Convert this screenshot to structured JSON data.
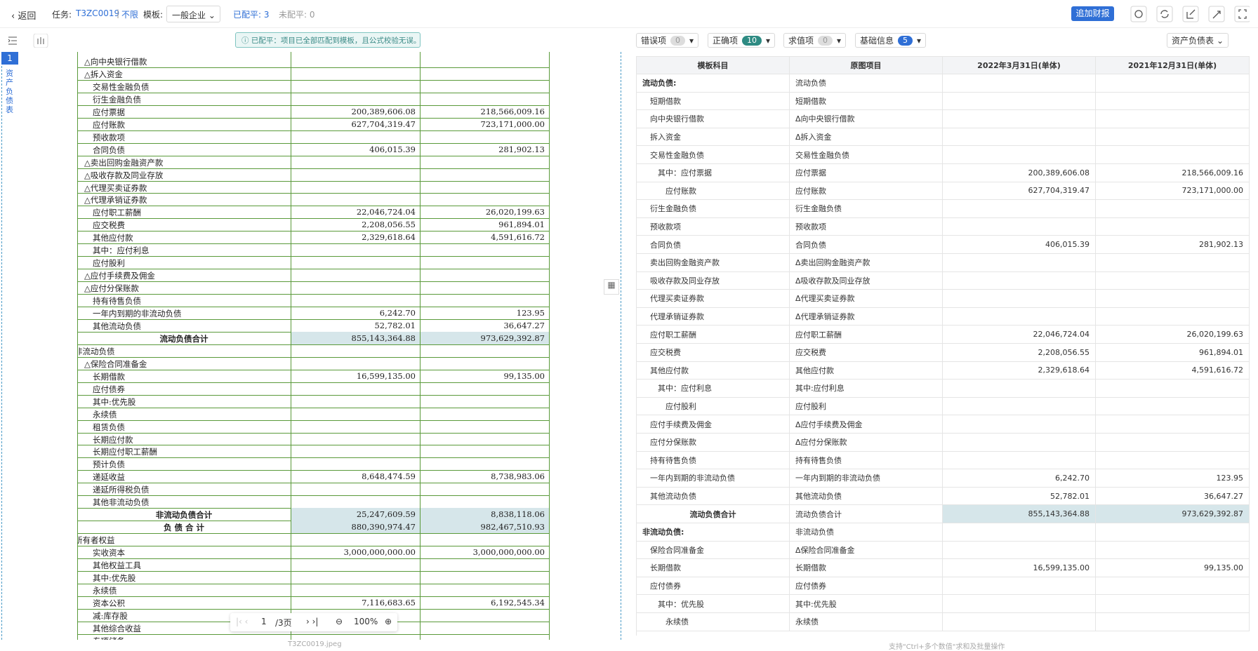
{
  "topbar": {
    "back": "返回",
    "task_label": "任务:",
    "task_id": "T3ZC0019",
    "scope": "不限",
    "template_label": "模板:",
    "template": "一般企业",
    "balanced": "已配平: 3",
    "unbalanced": "未配平: 0",
    "add_button": "追加财报"
  },
  "banner": "已配平：项目已全部匹配到模板，且公式校验无误。",
  "side_tab": {
    "index": "1",
    "label": "资产负债表"
  },
  "document": {
    "file": "T3ZC0019.jpeg",
    "rows": [
      [
        "△向中央银行借款"
      ],
      [
        "△拆入资金"
      ],
      [
        "交易性金融负债"
      ],
      [
        "衍生金融负债"
      ],
      [
        "应付票据",
        "200,389,606.08",
        "218,566,009.16"
      ],
      [
        "应付账款",
        "627,704,319.47",
        "723,171,000.00"
      ],
      [
        "预收款项"
      ],
      [
        "合同负债",
        "406,015.39",
        "281,902.13"
      ],
      [
        "△卖出回购金融资产款"
      ],
      [
        "△吸收存款及同业存放"
      ],
      [
        "△代理买卖证券款"
      ],
      [
        "△代理承销证券款"
      ],
      [
        "应付职工薪酬",
        "22,046,724.04",
        "26,020,199.63"
      ],
      [
        "应交税费",
        "2,208,056.55",
        "961,894.01"
      ],
      [
        "其他应付款",
        "2,329,618.64",
        "4,591,616.72"
      ],
      [
        "其中：应付利息"
      ],
      [
        "应付股利"
      ],
      [
        "△应付手续费及佣金"
      ],
      [
        "△应付分保账款"
      ],
      [
        "持有待售负债"
      ],
      [
        "一年内到期的非流动负债",
        "6,242.70",
        "123.95"
      ],
      [
        "其他流动负债",
        "52,782.01",
        "36,647.27"
      ],
      [
        "流动负债合计",
        "855,143,364.88",
        "973,629,392.87"
      ],
      [
        "非流动负债"
      ],
      [
        "△保险合同准备金"
      ],
      [
        "长期借款",
        "16,599,135.00",
        "99,135.00"
      ],
      [
        "应付债券"
      ],
      [
        "其中:优先股"
      ],
      [
        "永续债"
      ],
      [
        "租赁负债"
      ],
      [
        "长期应付款"
      ],
      [
        "长期应付职工薪酬"
      ],
      [
        "预计负债"
      ],
      [
        "递延收益",
        "8,648,474.59",
        "8,738,983.06"
      ],
      [
        "递延所得税负债"
      ],
      [
        "其他非流动负债"
      ],
      [
        "非流动负债合计",
        "25,247,609.59",
        "8,838,118.06"
      ],
      [
        "负 债 合 计",
        "880,390,974.47",
        "982,467,510.93"
      ],
      [
        "所有者权益"
      ],
      [
        "实收资本",
        "3,000,000,000.00",
        "3,000,000,000.00"
      ],
      [
        "其他权益工具"
      ],
      [
        "其中:优先股"
      ],
      [
        "永续债"
      ],
      [
        "资本公积",
        "7,116,683.65",
        "6,192,545.34"
      ],
      [
        "减:库存股"
      ],
      [
        "其他综合收益"
      ],
      [
        "专项储备"
      ]
    ]
  },
  "pager": {
    "page": "1",
    "total": "/3页",
    "zoom": "100%"
  },
  "filters": [
    {
      "label": "错误项",
      "count": 0
    },
    {
      "label": "正确项",
      "count": 10
    },
    {
      "label": "求值项",
      "count": 0
    },
    {
      "label": "基础信息",
      "count": 5
    }
  ],
  "sheet_select": "资产负债表",
  "table": {
    "headers": [
      "模板科目",
      "原图项目",
      "2022年3月31日(单体)",
      "2021年12月31日(单体)"
    ],
    "rows": [
      [
        "流动负债:",
        "流动负债"
      ],
      [
        "短期借款",
        "短期借款"
      ],
      [
        "向中央银行借款",
        "Δ向中央银行借款"
      ],
      [
        "拆入资金",
        "Δ拆入资金"
      ],
      [
        "交易性金融负债",
        "交易性金融负债"
      ],
      [
        "其中：应付票据",
        "应付票据",
        "200,389,606.08",
        "218,566,009.16"
      ],
      [
        "应付账款",
        "应付账款",
        "627,704,319.47",
        "723,171,000.00"
      ],
      [
        "衍生金融负债",
        "衍生金融负债"
      ],
      [
        "预收款项",
        "预收款项"
      ],
      [
        "合同负债",
        "合同负债",
        "406,015.39",
        "281,902.13"
      ],
      [
        "卖出回购金融资产款",
        "Δ卖出回购金融资产款"
      ],
      [
        "吸收存款及同业存放",
        "Δ吸收存款及同业存放"
      ],
      [
        "代理买卖证券款",
        "Δ代理买卖证券款"
      ],
      [
        "代理承销证券款",
        "Δ代理承销证券款"
      ],
      [
        "应付职工薪酬",
        "应付职工薪酬",
        "22,046,724.04",
        "26,020,199.63"
      ],
      [
        "应交税费",
        "应交税费",
        "2,208,056.55",
        "961,894.01"
      ],
      [
        "其他应付款",
        "其他应付款",
        "2,329,618.64",
        "4,591,616.72"
      ],
      [
        "其中：应付利息",
        "其中:应付利息"
      ],
      [
        "应付股利",
        "应付股利"
      ],
      [
        "应付手续费及佣金",
        "Δ应付手续费及佣金"
      ],
      [
        "应付分保账款",
        "Δ应付分保账款"
      ],
      [
        "持有待售负债",
        "持有待售负债"
      ],
      [
        "一年内到期的非流动负债",
        "一年内到期的非流动负债",
        "6,242.70",
        "123.95"
      ],
      [
        "其他流动负债",
        "其他流动负债",
        "52,782.01",
        "36,647.27"
      ],
      [
        "流动负债合计",
        "流动负债合计",
        "855,143,364.88",
        "973,629,392.87"
      ],
      [
        "非流动负债:",
        "非流动负债"
      ],
      [
        "保险合同准备金",
        "Δ保险合同准备金"
      ],
      [
        "长期借款",
        "长期借款",
        "16,599,135.00",
        "99,135.00"
      ],
      [
        "应付债券",
        "应付债券"
      ],
      [
        "其中：优先股",
        "其中:优先股"
      ],
      [
        "永续债",
        "永续债"
      ]
    ]
  },
  "footer_hint": "支持\"Ctrl+多个数值\"求和及批量操作"
}
